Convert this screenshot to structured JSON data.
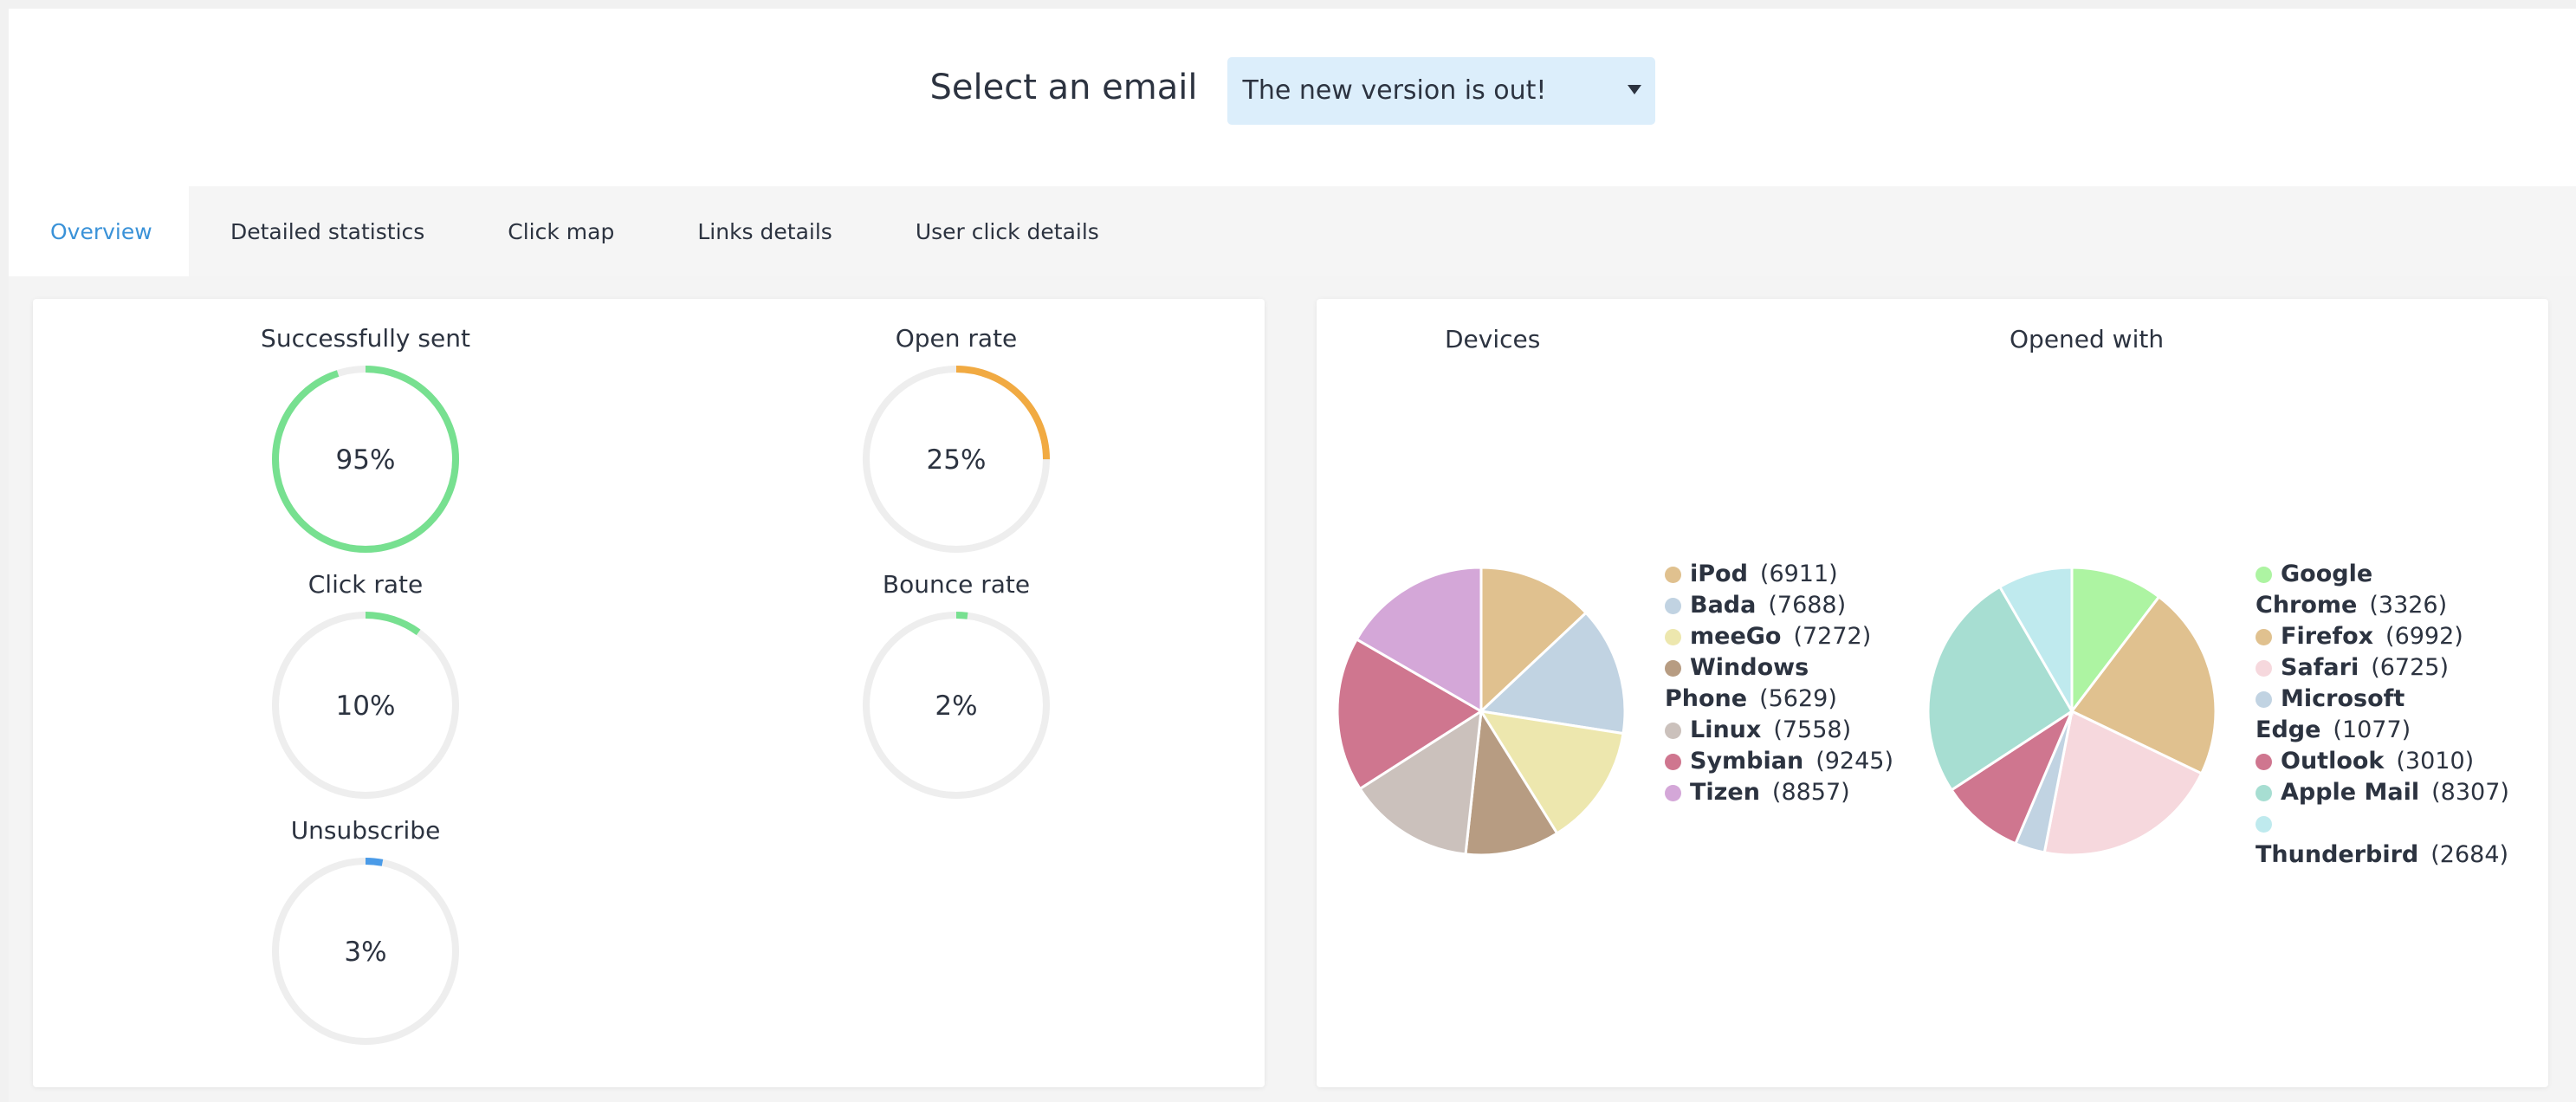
{
  "header": {
    "title": "Select an email",
    "selected_email": "The new version is out!"
  },
  "tabs": [
    {
      "label": "Overview",
      "active": true
    },
    {
      "label": "Detailed statistics",
      "active": false
    },
    {
      "label": "Click map",
      "active": false
    },
    {
      "label": "Links details",
      "active": false
    },
    {
      "label": "User click details",
      "active": false
    }
  ],
  "colors": {
    "accent": "#3a92d8",
    "green": "#77e090",
    "orange": "#f1aa42",
    "blue": "#4a9be8",
    "track": "#eeeeee"
  },
  "gauges": [
    {
      "label": "Successfully sent",
      "value_text": "95%",
      "value": 95,
      "color": "#77e090"
    },
    {
      "label": "Open rate",
      "value_text": "25%",
      "value": 25,
      "color": "#f1aa42"
    },
    {
      "label": "Click rate",
      "value_text": "10%",
      "value": 10,
      "color": "#77e090"
    },
    {
      "label": "Bounce rate",
      "value_text": "2%",
      "value": 2,
      "color": "#77e090"
    },
    {
      "label": "Unsubscribe",
      "value_text": "3%",
      "value": 3,
      "color": "#4a9be8"
    }
  ],
  "chart_data": [
    {
      "type": "pie",
      "title": "Devices",
      "categories": [
        "iPod",
        "Bada",
        "meeGo",
        "Windows Phone",
        "Linux",
        "Symbian",
        "Tizen"
      ],
      "values": [
        6911,
        7688,
        7272,
        5629,
        7558,
        9245,
        8857
      ],
      "colors": [
        "#e0c18f",
        "#c1d3e2",
        "#ede7ae",
        "#b79c82",
        "#cbc1bc",
        "#cf768f",
        "#d4a7d8"
      ],
      "legend_position": "right"
    },
    {
      "type": "pie",
      "title": "Opened with",
      "categories": [
        "Google Chrome",
        "Firefox",
        "Safari",
        "Microsoft Edge",
        "Outlook",
        "Apple Mail",
        "Thunderbird"
      ],
      "values": [
        3326,
        6992,
        6725,
        1077,
        3010,
        8307,
        2684
      ],
      "colors": [
        "#adf4a2",
        "#e0c18f",
        "#f6d8dd",
        "#c1d3e2",
        "#cf768f",
        "#a7ded2",
        "#bfeaee"
      ],
      "legend_position": "right"
    }
  ]
}
